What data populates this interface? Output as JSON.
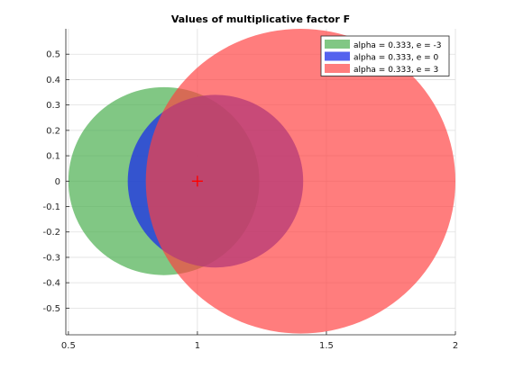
{
  "chart_data": {
    "type": "scatter",
    "title": "Values of multiplicative factor F",
    "xlabel": "",
    "ylabel": "",
    "xlim": [
      0.49,
      2.0
    ],
    "ylim": [
      -0.605,
      0.6
    ],
    "x_ticks": [
      0.5,
      1,
      1.5,
      2
    ],
    "x_tick_labels": [
      "0.5",
      "1",
      "1.5",
      "2"
    ],
    "y_ticks": [
      -0.5,
      -0.4,
      -0.3,
      -0.2,
      -0.1,
      0,
      0.1,
      0.2,
      0.3,
      0.4,
      0.5
    ],
    "y_tick_labels": [
      "-0.5",
      "-0.4",
      "-0.3",
      "-0.2",
      "-0.1",
      "0",
      "0.1",
      "0.2",
      "0.3",
      "0.4",
      "0.5"
    ],
    "grid": true,
    "legend_position": "top-right",
    "series": [
      {
        "name": "alpha = 0.333, e = -3",
        "center": [
          0.87,
          0.0
        ],
        "radius": 0.37,
        "color": "#4caf50",
        "opacity": 0.7
      },
      {
        "name": "alpha = 0.333, e = 0",
        "center": [
          1.07,
          0.0
        ],
        "radius": 0.34,
        "color": "#1b2ee8",
        "opacity": 0.75
      },
      {
        "name": "alpha = 0.333, e = 3",
        "center": [
          1.4,
          0.0
        ],
        "radius": 0.6,
        "color": "#ff4040",
        "opacity": 0.68
      }
    ],
    "marker": {
      "x": 1,
      "y": 0,
      "symbol": "+",
      "color": "#ff0000"
    }
  }
}
